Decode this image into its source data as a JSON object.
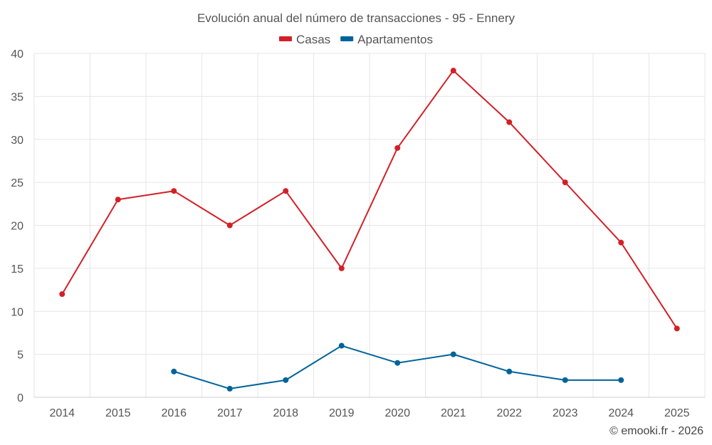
{
  "chart_data": {
    "type": "line",
    "title": "Evolución anual del número de transacciones - 95 - Ennery",
    "categories": [
      "2014",
      "2015",
      "2016",
      "2017",
      "2018",
      "2019",
      "2020",
      "2021",
      "2022",
      "2023",
      "2024",
      "2025"
    ],
    "series": [
      {
        "name": "Casas",
        "color": "#d32027",
        "values": [
          12,
          23,
          24,
          20,
          24,
          15,
          29,
          38,
          32,
          25,
          18,
          8
        ]
      },
      {
        "name": "Apartamentos",
        "color": "#00639a",
        "values": [
          null,
          null,
          3,
          1,
          2,
          6,
          4,
          5,
          3,
          2,
          2,
          null
        ]
      }
    ],
    "ylim": [
      0,
      40
    ],
    "yticks": [
      0,
      5,
      10,
      15,
      20,
      25,
      30,
      35,
      40
    ],
    "grid": true,
    "legend_position": "top-center",
    "xlabel": "",
    "ylabel": ""
  },
  "credit": "© emooki.fr - 2026"
}
